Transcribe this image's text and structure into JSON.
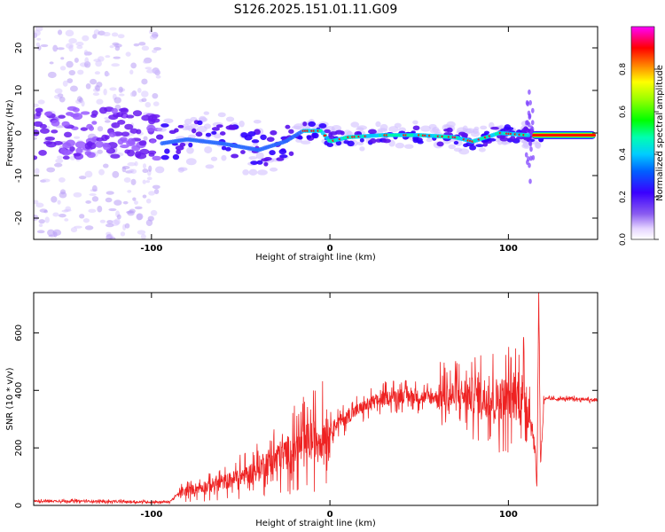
{
  "title": "S126.2025.151.01.11.G09",
  "charts_type_note": "",
  "chart_data": [
    {
      "type": "heatmap",
      "xlabel": "Height of straight line (km)",
      "ylabel": "Frequency (Hz)",
      "xlim": [
        -166,
        150
      ],
      "ylim": [
        -25,
        25
      ],
      "x_ticks": [
        -100,
        0,
        100
      ],
      "y_ticks": [
        -20,
        -10,
        0,
        10,
        20
      ],
      "colorbar": {
        "label": "Normalized spectral amplitude",
        "range": [
          0,
          1
        ],
        "ticks": [
          0.0,
          0.2,
          0.4,
          0.6,
          0.8
        ]
      },
      "ridge": [
        {
          "x": -95,
          "freq": -2.5
        },
        {
          "x": -80,
          "freq": -1.5
        },
        {
          "x": -60,
          "freq": -2.5
        },
        {
          "x": -40,
          "freq": -4
        },
        {
          "x": -25,
          "freq": -2
        },
        {
          "x": -15,
          "freq": 0.5
        },
        {
          "x": -5,
          "freq": 0.5
        },
        {
          "x": 0,
          "freq": -2
        },
        {
          "x": 10,
          "freq": -1
        },
        {
          "x": 30,
          "freq": -0.5
        },
        {
          "x": 50,
          "freq": -0.5
        },
        {
          "x": 70,
          "freq": -1
        },
        {
          "x": 80,
          "freq": -2
        },
        {
          "x": 95,
          "freq": 0
        },
        {
          "x": 110,
          "freq": -0.5
        },
        {
          "x": 150,
          "freq": -0.5
        }
      ]
    },
    {
      "type": "line",
      "xlabel": "Height of straight line (km)",
      "ylabel": "SNR (10 * v/v)",
      "xlim": [
        -166,
        150
      ],
      "ylim": [
        0,
        740
      ],
      "x_ticks": [
        -100,
        0,
        100
      ],
      "y_ticks": [
        0,
        200,
        400,
        600
      ],
      "color": "#ee2222",
      "series": [
        {
          "x": [
            -166,
            -140,
            -110,
            -90,
            -85,
            -75,
            -60,
            -45,
            -35,
            -25,
            -15,
            -5,
            5,
            15,
            25,
            35,
            45,
            55,
            65,
            75,
            85,
            95,
            100,
            105,
            110,
            115,
            116,
            117,
            118,
            120,
            130,
            140,
            150
          ],
          "values": [
            15,
            15,
            12,
            12,
            40,
            60,
            80,
            110,
            150,
            180,
            210,
            240,
            290,
            330,
            360,
            380,
            380,
            375,
            380,
            385,
            380,
            370,
            375,
            380,
            380,
            200,
            60,
            740,
            150,
            370,
            370,
            370,
            365
          ]
        }
      ]
    }
  ]
}
